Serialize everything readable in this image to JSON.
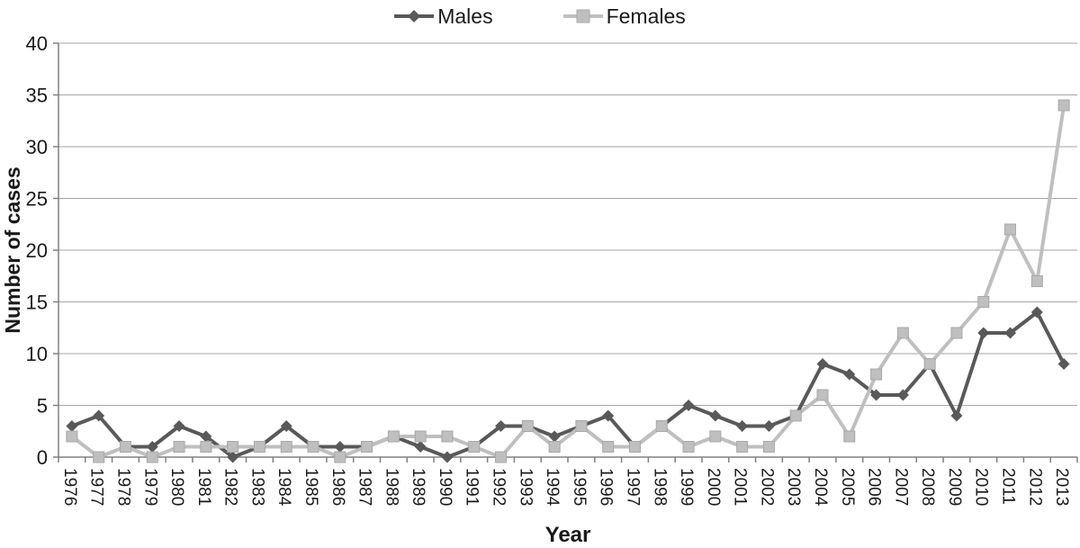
{
  "chart_data": {
    "type": "line",
    "title": "",
    "xlabel": "Year",
    "ylabel": "Number of cases",
    "ylim": [
      0,
      40
    ],
    "ytick_step": 5,
    "y_ticks": [
      "0",
      "5",
      "10",
      "15",
      "20",
      "25",
      "30",
      "35",
      "40"
    ],
    "grid": true,
    "legend_position": "top-center",
    "categories": [
      "1976",
      "1977",
      "1978",
      "1979",
      "1980",
      "1981",
      "1982",
      "1983",
      "1984",
      "1985",
      "1986",
      "1987",
      "1988",
      "1989",
      "1990",
      "1991",
      "1992",
      "1993",
      "1994",
      "1995",
      "1996",
      "1997",
      "1998",
      "1999",
      "2000",
      "2001",
      "2002",
      "2003",
      "2004",
      "2005",
      "2006",
      "2007",
      "2008",
      "2009",
      "2010",
      "2011",
      "2012",
      "2013"
    ],
    "series": [
      {
        "name": "Males",
        "marker": "diamond",
        "color": "#595959",
        "values": [
          3,
          4,
          1,
          1,
          3,
          2,
          0,
          1,
          3,
          1,
          1,
          1,
          2,
          1,
          0,
          1,
          3,
          3,
          2,
          3,
          4,
          1,
          3,
          5,
          4,
          3,
          3,
          4,
          9,
          8,
          6,
          6,
          9,
          4,
          12,
          12,
          14,
          9
        ]
      },
      {
        "name": "Females",
        "marker": "square",
        "color": "#bfbfbf",
        "values": [
          2,
          0,
          1,
          0,
          1,
          1,
          1,
          1,
          1,
          1,
          0,
          1,
          2,
          2,
          2,
          1,
          0,
          3,
          1,
          3,
          1,
          1,
          3,
          1,
          2,
          1,
          1,
          4,
          6,
          2,
          8,
          12,
          9,
          12,
          15,
          22,
          17,
          34
        ]
      }
    ]
  },
  "colors": {
    "males_line": "#595959",
    "females_line": "#bfbfbf",
    "females_marker_border": "#a8a8a8",
    "gridline": "#a6a6a6",
    "axis": "#808080",
    "text": "#1a1a1a"
  }
}
